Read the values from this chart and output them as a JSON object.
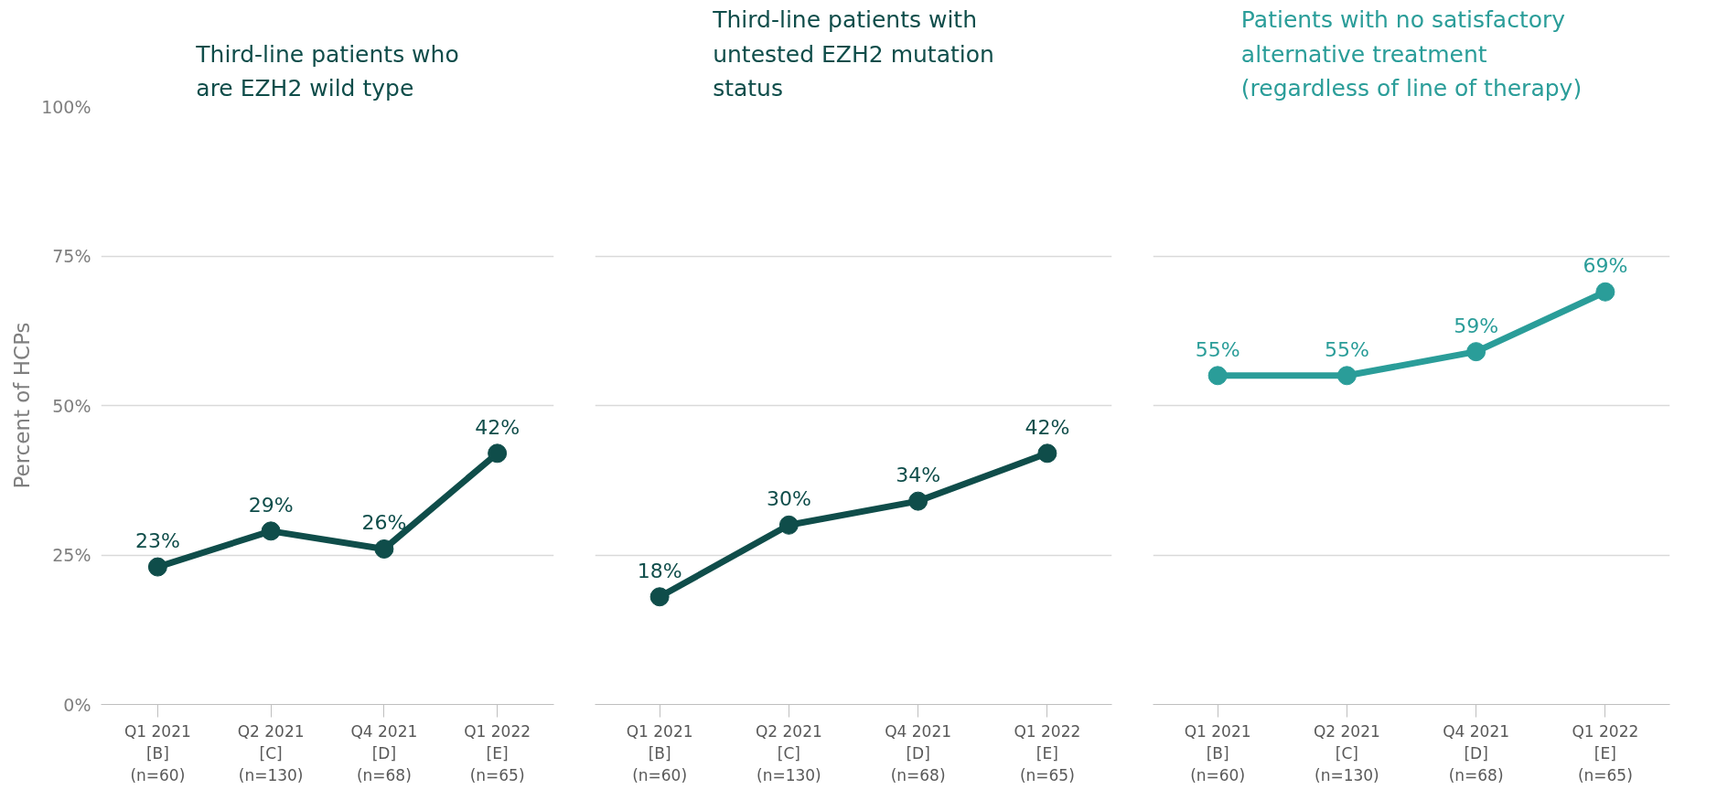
{
  "chart_data": [
    {
      "type": "line",
      "title": "Third-line patients who\nare EZH2 wild type",
      "ylabel": "Percent of HCPs",
      "categories": [
        "Q1 2021\n[B]\n(n=60)",
        "Q2 2021\n[C]\n(n=130)",
        "Q4 2021\n[D]\n(n=68)",
        "Q1 2022\n[E]\n(n=65)"
      ],
      "series": [
        {
          "color": "#0f4d4a",
          "values": [
            23,
            29,
            26,
            42
          ]
        }
      ],
      "ylim": [
        0,
        100
      ],
      "yticks": [
        {
          "value": 0,
          "label": "0%"
        },
        {
          "value": 25,
          "label": "25%"
        },
        {
          "value": 50,
          "label": "50%"
        },
        {
          "value": 75,
          "label": "75%"
        },
        {
          "value": 100,
          "label": "100%"
        }
      ],
      "grid": "y",
      "marker": "circle",
      "line_style": "solid",
      "value_labels": [
        "23%",
        "29%",
        "26%",
        "42%"
      ]
    },
    {
      "type": "line",
      "title": "Third-line patients with\nuntested EZH2 mutation\nstatus",
      "categories": [
        "Q1 2021\n[B]\n(n=60)",
        "Q2 2021\n[C]\n(n=130)",
        "Q4 2021\n[D]\n(n=68)",
        "Q1 2022\n[E]\n(n=65)"
      ],
      "series": [
        {
          "color": "#0f4d4a",
          "values": [
            18,
            30,
            34,
            42
          ]
        }
      ],
      "ylim": [
        0,
        100
      ],
      "yticks": [
        0,
        25,
        50,
        75,
        100
      ],
      "grid": "y",
      "tick_labels": "x",
      "marker": "circle",
      "line_style": "solid",
      "value_labels": [
        "18%",
        "30%",
        "34%",
        "42%"
      ]
    },
    {
      "type": "line",
      "title": "Patients with no satisfactory\nalternative treatment\n(regardless of line of therapy)",
      "categories": [
        "Q1 2021\n[B]\n(n=60)",
        "Q2 2021\n[C]\n(n=130)",
        "Q4 2021\n[D]\n(n=68)",
        "Q1 2022\n[E]\n(n=65)"
      ],
      "series": [
        {
          "color": "#2a9d99",
          "values": [
            55,
            55,
            59,
            69
          ]
        }
      ],
      "ylim": [
        0,
        100
      ],
      "yticks": [
        0,
        25,
        50,
        75,
        100
      ],
      "grid": "y",
      "tick_labels": "x",
      "marker": "circle",
      "line_style": "solid",
      "value_labels": [
        "55%",
        "55%",
        "59%",
        "69%"
      ]
    }
  ]
}
